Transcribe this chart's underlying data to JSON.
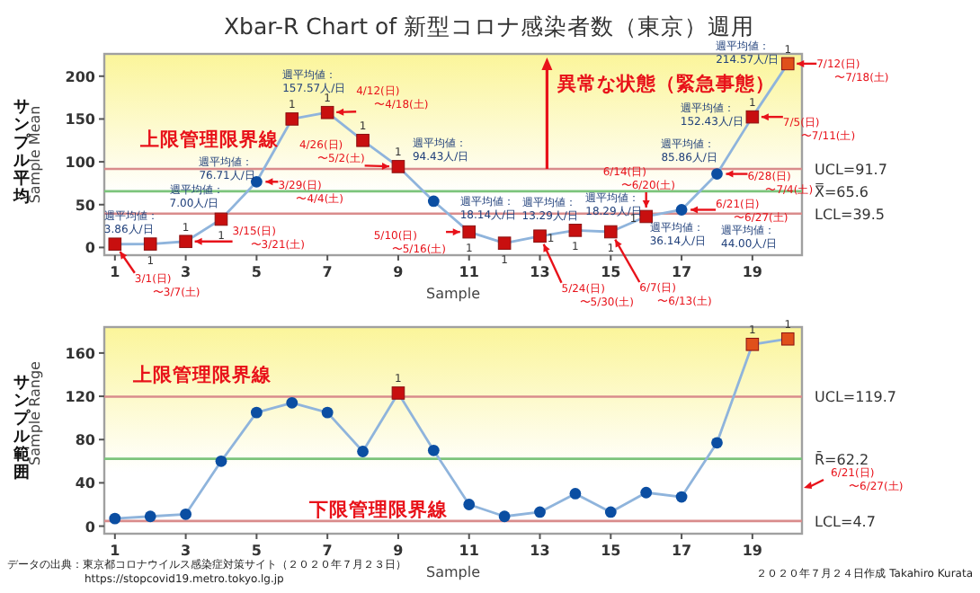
{
  "chart_data": [
    {
      "type": "line",
      "title": "Xbar-R Chart of 新型コロナ感染者数（東京）週用",
      "xlabel": "Sample",
      "ylabel": "サンプル平均",
      "x": [
        1,
        2,
        3,
        4,
        5,
        6,
        7,
        8,
        9,
        10,
        11,
        12,
        13,
        14,
        15,
        16,
        17,
        18,
        19,
        20
      ],
      "xlim": [
        0.7,
        20.4
      ],
      "xticks": [
        1,
        3,
        5,
        7,
        9,
        11,
        13,
        15,
        17,
        19
      ],
      "ylim": [
        -9,
        226
      ],
      "yticks": [
        0,
        50,
        100,
        150,
        200
      ],
      "grid": false,
      "series": [
        {
          "type": "line",
          "marker": "none",
          "color": "#8fb4dc",
          "values": [
            3.86,
            4,
            7.0,
            33,
            76.71,
            150,
            157.57,
            125,
            94.43,
            54,
            18.14,
            5,
            13.29,
            20,
            18.29,
            36.14,
            44.0,
            85.86,
            152.43,
            214.57
          ]
        },
        {
          "type": "scatter",
          "marker": "circle",
          "color": "#0b4ea2",
          "values": [
            null,
            null,
            null,
            null,
            76.71,
            null,
            null,
            null,
            null,
            54,
            null,
            null,
            null,
            null,
            null,
            null,
            44.0,
            85.86,
            null,
            null
          ]
        },
        {
          "type": "scatter",
          "marker": "square",
          "color": "#c80f0f",
          "values": [
            3.86,
            4,
            7.0,
            33,
            null,
            150,
            157.57,
            125,
            94.43,
            null,
            18.14,
            5,
            13.29,
            20,
            18.29,
            36.14,
            null,
            null,
            152.43,
            null
          ]
        },
        {
          "type": "scatter",
          "marker": "square",
          "color": "#e0501a",
          "values": [
            null,
            null,
            null,
            null,
            null,
            null,
            null,
            null,
            null,
            null,
            null,
            null,
            null,
            null,
            null,
            null,
            null,
            null,
            null,
            214.57
          ]
        }
      ],
      "ref_lines": [
        {
          "axis": "y",
          "value": 91.7,
          "label": "UCL=91.7",
          "color": "#d98c8c"
        },
        {
          "axis": "y",
          "value": 65.6,
          "label": "X̿=65.6",
          "color": "#7cc47c"
        },
        {
          "axis": "y",
          "value": 39.5,
          "label": "LCL=39.5",
          "color": "#d98c8c"
        }
      ],
      "annotations": [
        {
          "text": "週平均値：\n3.86人/日",
          "x": 1,
          "y": 3.86
        },
        {
          "text": "週平均値：\n7.00人/日",
          "x": 3,
          "y": 7.0
        },
        {
          "text": "週平均値：\n76.71人/日",
          "x": 5,
          "y": 76.71
        },
        {
          "text": "週平均値：\n157.57人/日",
          "x": 7,
          "y": 157.57
        },
        {
          "text": "週平均値：\n94.43人/日",
          "x": 9,
          "y": 94.43
        },
        {
          "text": "週平均値：\n18.14人/日",
          "x": 11,
          "y": 18.14
        },
        {
          "text": "週平均値：\n13.29人/日",
          "x": 13,
          "y": 13.29
        },
        {
          "text": "週平均値：\n18.29人/日",
          "x": 15,
          "y": 18.29
        },
        {
          "text": "週平均値：\n36.14人/日",
          "x": 16,
          "y": 36.14
        },
        {
          "text": "週平均値：\n85.86人/日",
          "x": 18,
          "y": 85.86
        },
        {
          "text": "週平均値：\n152.43人/日",
          "x": 19,
          "y": 152.43
        },
        {
          "text": "週平均値：\n214.57人/日",
          "x": 20,
          "y": 214.57
        },
        {
          "text": "3/1(日)\n〜3/7(土)",
          "x": 1,
          "y": 3.86
        },
        {
          "text": "3/15(日)\n〜3/21(土)",
          "x": 3,
          "y": 7.0
        },
        {
          "text": "3/29(日)\n〜4/4(土)",
          "x": 5,
          "y": 76.71
        },
        {
          "text": "4/12(日)\n〜4/18(土)",
          "x": 7,
          "y": 157.57
        },
        {
          "text": "4/26(日)\n〜5/2(土)",
          "x": 9,
          "y": 94.43
        },
        {
          "text": "5/10(日)\n〜5/16(土)",
          "x": 11,
          "y": 18.14
        },
        {
          "text": "5/24(日)\n〜5/30(土)",
          "x": 13,
          "y": 13.29
        },
        {
          "text": "6/7(日)\n〜6/13(土)",
          "x": 15,
          "y": 18.29
        },
        {
          "text": "6/14(日)\n〜6/20(土)",
          "x": 16,
          "y": 36.14
        },
        {
          "text": "6/21(日)\n〜6/27(土)",
          "x": 17,
          "y": 44.0
        },
        {
          "text": "6/28(日)\n〜7/4(土)",
          "x": 18,
          "y": 85.86
        },
        {
          "text": "7/5(日)\n〜7/11(土)",
          "x": 19,
          "y": 152.43
        },
        {
          "text": "7/12(日)\n〜7/18(土)",
          "x": 20,
          "y": 214.57
        },
        {
          "text": "1",
          "x": 2,
          "y": 4
        },
        {
          "text": "1",
          "x": 3,
          "y": 7.0
        },
        {
          "text": "1",
          "x": 4,
          "y": 33
        },
        {
          "text": "1",
          "x": 6,
          "y": 150
        },
        {
          "text": "1",
          "x": 7,
          "y": 157.57
        },
        {
          "text": "1",
          "x": 8,
          "y": 125
        },
        {
          "text": "1",
          "x": 9,
          "y": 94.43
        },
        {
          "text": "1",
          "x": 11,
          "y": 18.14
        },
        {
          "text": "1",
          "x": 12,
          "y": 5
        },
        {
          "text": "1",
          "x": 13,
          "y": 13.29
        },
        {
          "text": "1",
          "x": 14,
          "y": 20
        },
        {
          "text": "1",
          "x": 15,
          "y": 18.29
        },
        {
          "text": "1",
          "x": 16,
          "y": 36.14
        },
        {
          "text": "1",
          "x": 19,
          "y": 152.43
        },
        {
          "text": "1",
          "x": 20,
          "y": 214.57
        },
        "Sample Mean",
        {
          "text": "異常な状態（緊急事態）",
          "x": 13.2,
          "y": 91.7
        },
        "上限管理限界線",
        "週平均値：\n44.00人/日"
      ]
    },
    {
      "type": "line",
      "xlabel": "Sample",
      "ylabel": "サンプル範囲",
      "x": [
        1,
        2,
        3,
        4,
        5,
        6,
        7,
        8,
        9,
        10,
        11,
        12,
        13,
        14,
        15,
        16,
        17,
        18,
        19,
        20
      ],
      "xlim": [
        0.7,
        20.4
      ],
      "xticks": [
        1,
        3,
        5,
        7,
        9,
        11,
        13,
        15,
        17,
        19
      ],
      "ylim": [
        -7,
        184
      ],
      "yticks": [
        0,
        40,
        80,
        120,
        160
      ],
      "grid": false,
      "series": [
        {
          "type": "line",
          "marker": "none",
          "color": "#8fb4dc",
          "values": [
            7,
            9,
            11,
            60,
            105,
            114,
            105,
            69,
            123,
            70,
            20,
            9,
            13,
            30,
            13,
            31,
            27,
            77,
            168,
            173
          ]
        },
        {
          "type": "scatter",
          "marker": "circle",
          "color": "#0b4ea2",
          "values": [
            7,
            9,
            11,
            60,
            105,
            114,
            105,
            69,
            null,
            70,
            20,
            9,
            13,
            30,
            13,
            31,
            27,
            77,
            null,
            null
          ]
        },
        {
          "type": "scatter",
          "marker": "square",
          "color": "#c80f0f",
          "values": [
            null,
            null,
            null,
            null,
            null,
            null,
            null,
            null,
            123,
            null,
            null,
            null,
            null,
            null,
            null,
            null,
            null,
            null,
            null,
            null
          ]
        },
        {
          "type": "scatter",
          "marker": "square",
          "color": "#e0501a",
          "values": [
            null,
            null,
            null,
            null,
            null,
            null,
            null,
            null,
            null,
            null,
            null,
            null,
            null,
            null,
            null,
            null,
            null,
            null,
            168,
            173
          ]
        }
      ],
      "ref_lines": [
        {
          "axis": "y",
          "value": 119.7,
          "label": "UCL=119.7",
          "color": "#d98c8c"
        },
        {
          "axis": "y",
          "value": 62.2,
          "label": "R̄=62.2",
          "color": "#7cc47c"
        },
        {
          "axis": "y",
          "value": 4.7,
          "label": "LCL=4.7",
          "color": "#d98c8c"
        }
      ],
      "annotations": [
        {
          "text": "1",
          "x": 9,
          "y": 123
        },
        {
          "text": "1",
          "x": 19,
          "y": 168
        },
        {
          "text": "1",
          "x": 20,
          "y": 173
        },
        "Sample Range",
        "上限管理限界線",
        "下限管理限界線",
        "6/21(日)\n〜6/27(土)",
        "データの出典：東京都コロナウイルス感染症対策サイト（２０２０年７月２３日）",
        "https://stopcovid19.metro.tokyo.lg.jp",
        "２０２０年７月２４日作成 Takahiro Kurata"
      ]
    }
  ]
}
